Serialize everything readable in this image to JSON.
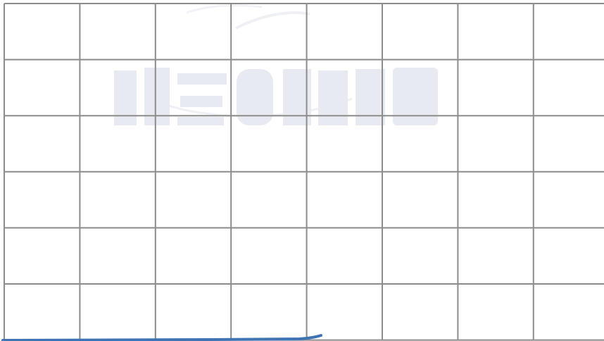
{
  "grid": {
    "columns": 8,
    "rows": 6,
    "line_color": "#8c8c8c",
    "background_color": "#ffffff"
  },
  "watermark": {
    "text": "RESONANCE",
    "color": "#e9ebf2"
  },
  "stroke": {
    "color": "#3f74b4"
  }
}
